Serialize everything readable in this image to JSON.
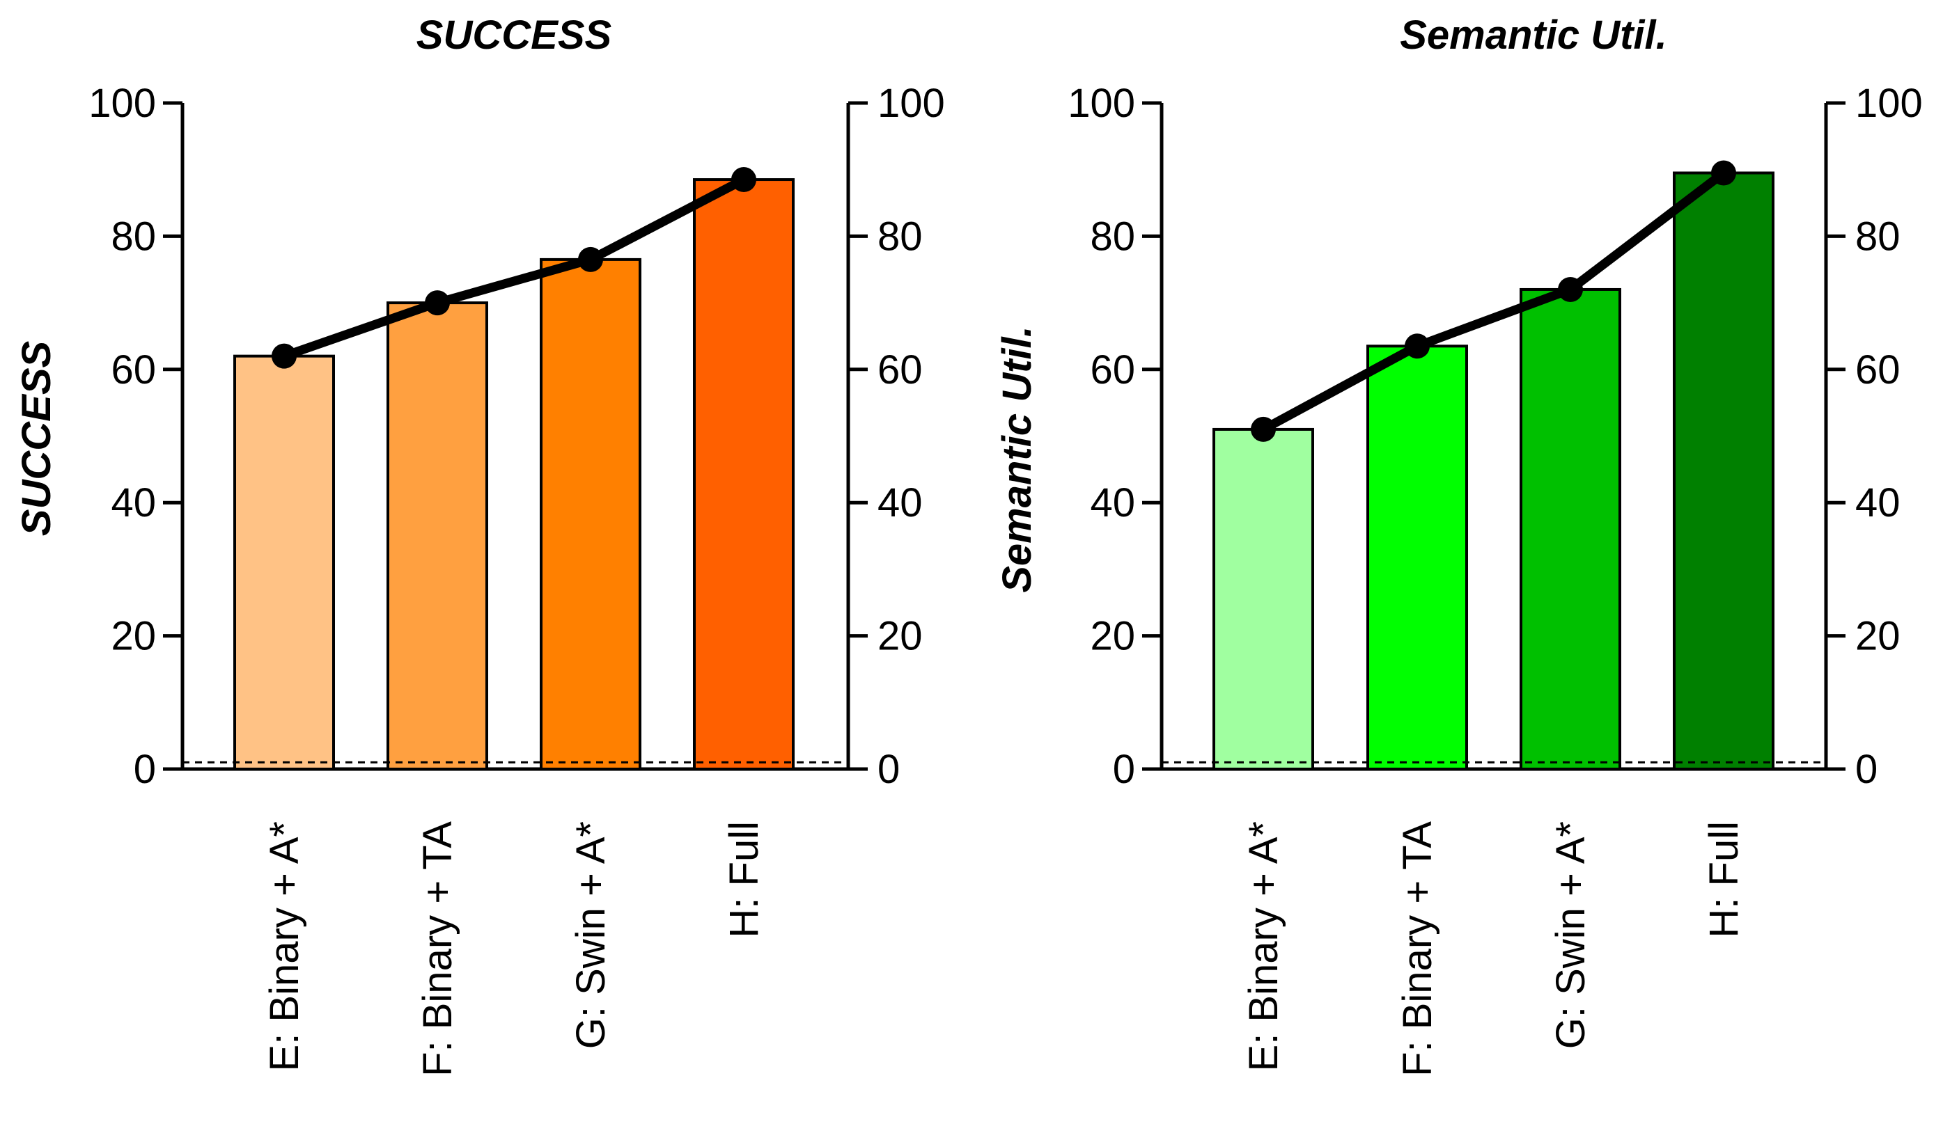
{
  "chart_data": [
    {
      "type": "bar",
      "title": "SUCCESS",
      "xlabel": "",
      "ylabel": "SUCCESS",
      "ylim": [
        0,
        100
      ],
      "yticks": [
        0,
        20,
        40,
        60,
        80,
        100
      ],
      "right_axis": {
        "ylim": [
          0,
          100
        ],
        "yticks": [
          0,
          20,
          40,
          60,
          80,
          100
        ]
      },
      "categories": [
        "E: Binary + A*",
        "F: Binary + TA",
        "G: Swin + A*",
        "H: Full"
      ],
      "values": [
        62,
        70,
        76.5,
        88.5
      ],
      "line_values": [
        62,
        70,
        76.5,
        88.5
      ],
      "bar_colors": [
        "#FFC285",
        "#FFA040",
        "#FF8000",
        "#FF6000"
      ],
      "reference_line": 1
    },
    {
      "type": "bar",
      "title": "Semantic Util.",
      "xlabel": "",
      "ylabel": "Semantic Util.",
      "ylim": [
        0,
        100
      ],
      "yticks": [
        0,
        20,
        40,
        60,
        80,
        100
      ],
      "right_axis": {
        "ylim": [
          0,
          100
        ],
        "yticks": [
          0,
          20,
          40,
          60,
          80,
          100
        ]
      },
      "categories": [
        "E: Binary + A*",
        "F: Binary + TA",
        "G: Swin + A*",
        "H: Full"
      ],
      "values": [
        51,
        63.5,
        72,
        89.5
      ],
      "line_values": [
        51,
        63.5,
        72,
        89.5
      ],
      "bar_colors": [
        "#A0FFA0",
        "#00FF00",
        "#00C000",
        "#008000"
      ],
      "reference_line": 1
    }
  ]
}
